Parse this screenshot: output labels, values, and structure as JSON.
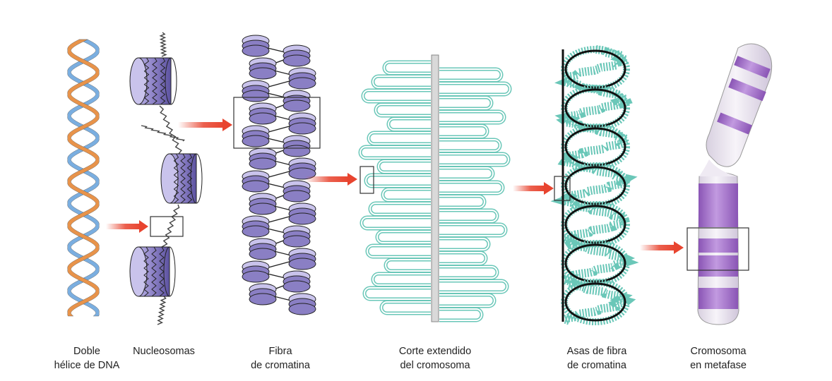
{
  "stages": [
    {
      "id": "dna",
      "lines": [
        "Doble",
        "hélice de DNA"
      ]
    },
    {
      "id": "nucleosomes",
      "lines": [
        "Nucleosomas"
      ]
    },
    {
      "id": "fiber",
      "lines": [
        "Fibra",
        "de cromatina"
      ]
    },
    {
      "id": "section",
      "lines": [
        "Corte extendido",
        "del cromosoma"
      ]
    },
    {
      "id": "loops",
      "lines": [
        "Asas de fibra",
        "de cromatina"
      ]
    },
    {
      "id": "chromosome",
      "lines": [
        "Cromosoma",
        "en metafase"
      ]
    }
  ],
  "colors": {
    "strand_a": "#e8934a",
    "strand_b": "#7aaee0",
    "nucleosome": "#8a7fc4",
    "nucleosome_light": "#c9c3ec",
    "scaffold": "#6ac7b8",
    "loop_fiber": "#111111",
    "chromosome_band": "#a575c9",
    "chromosome_light": "#e9e3ee",
    "arrow": "#e8442f",
    "frame": "#333333"
  }
}
